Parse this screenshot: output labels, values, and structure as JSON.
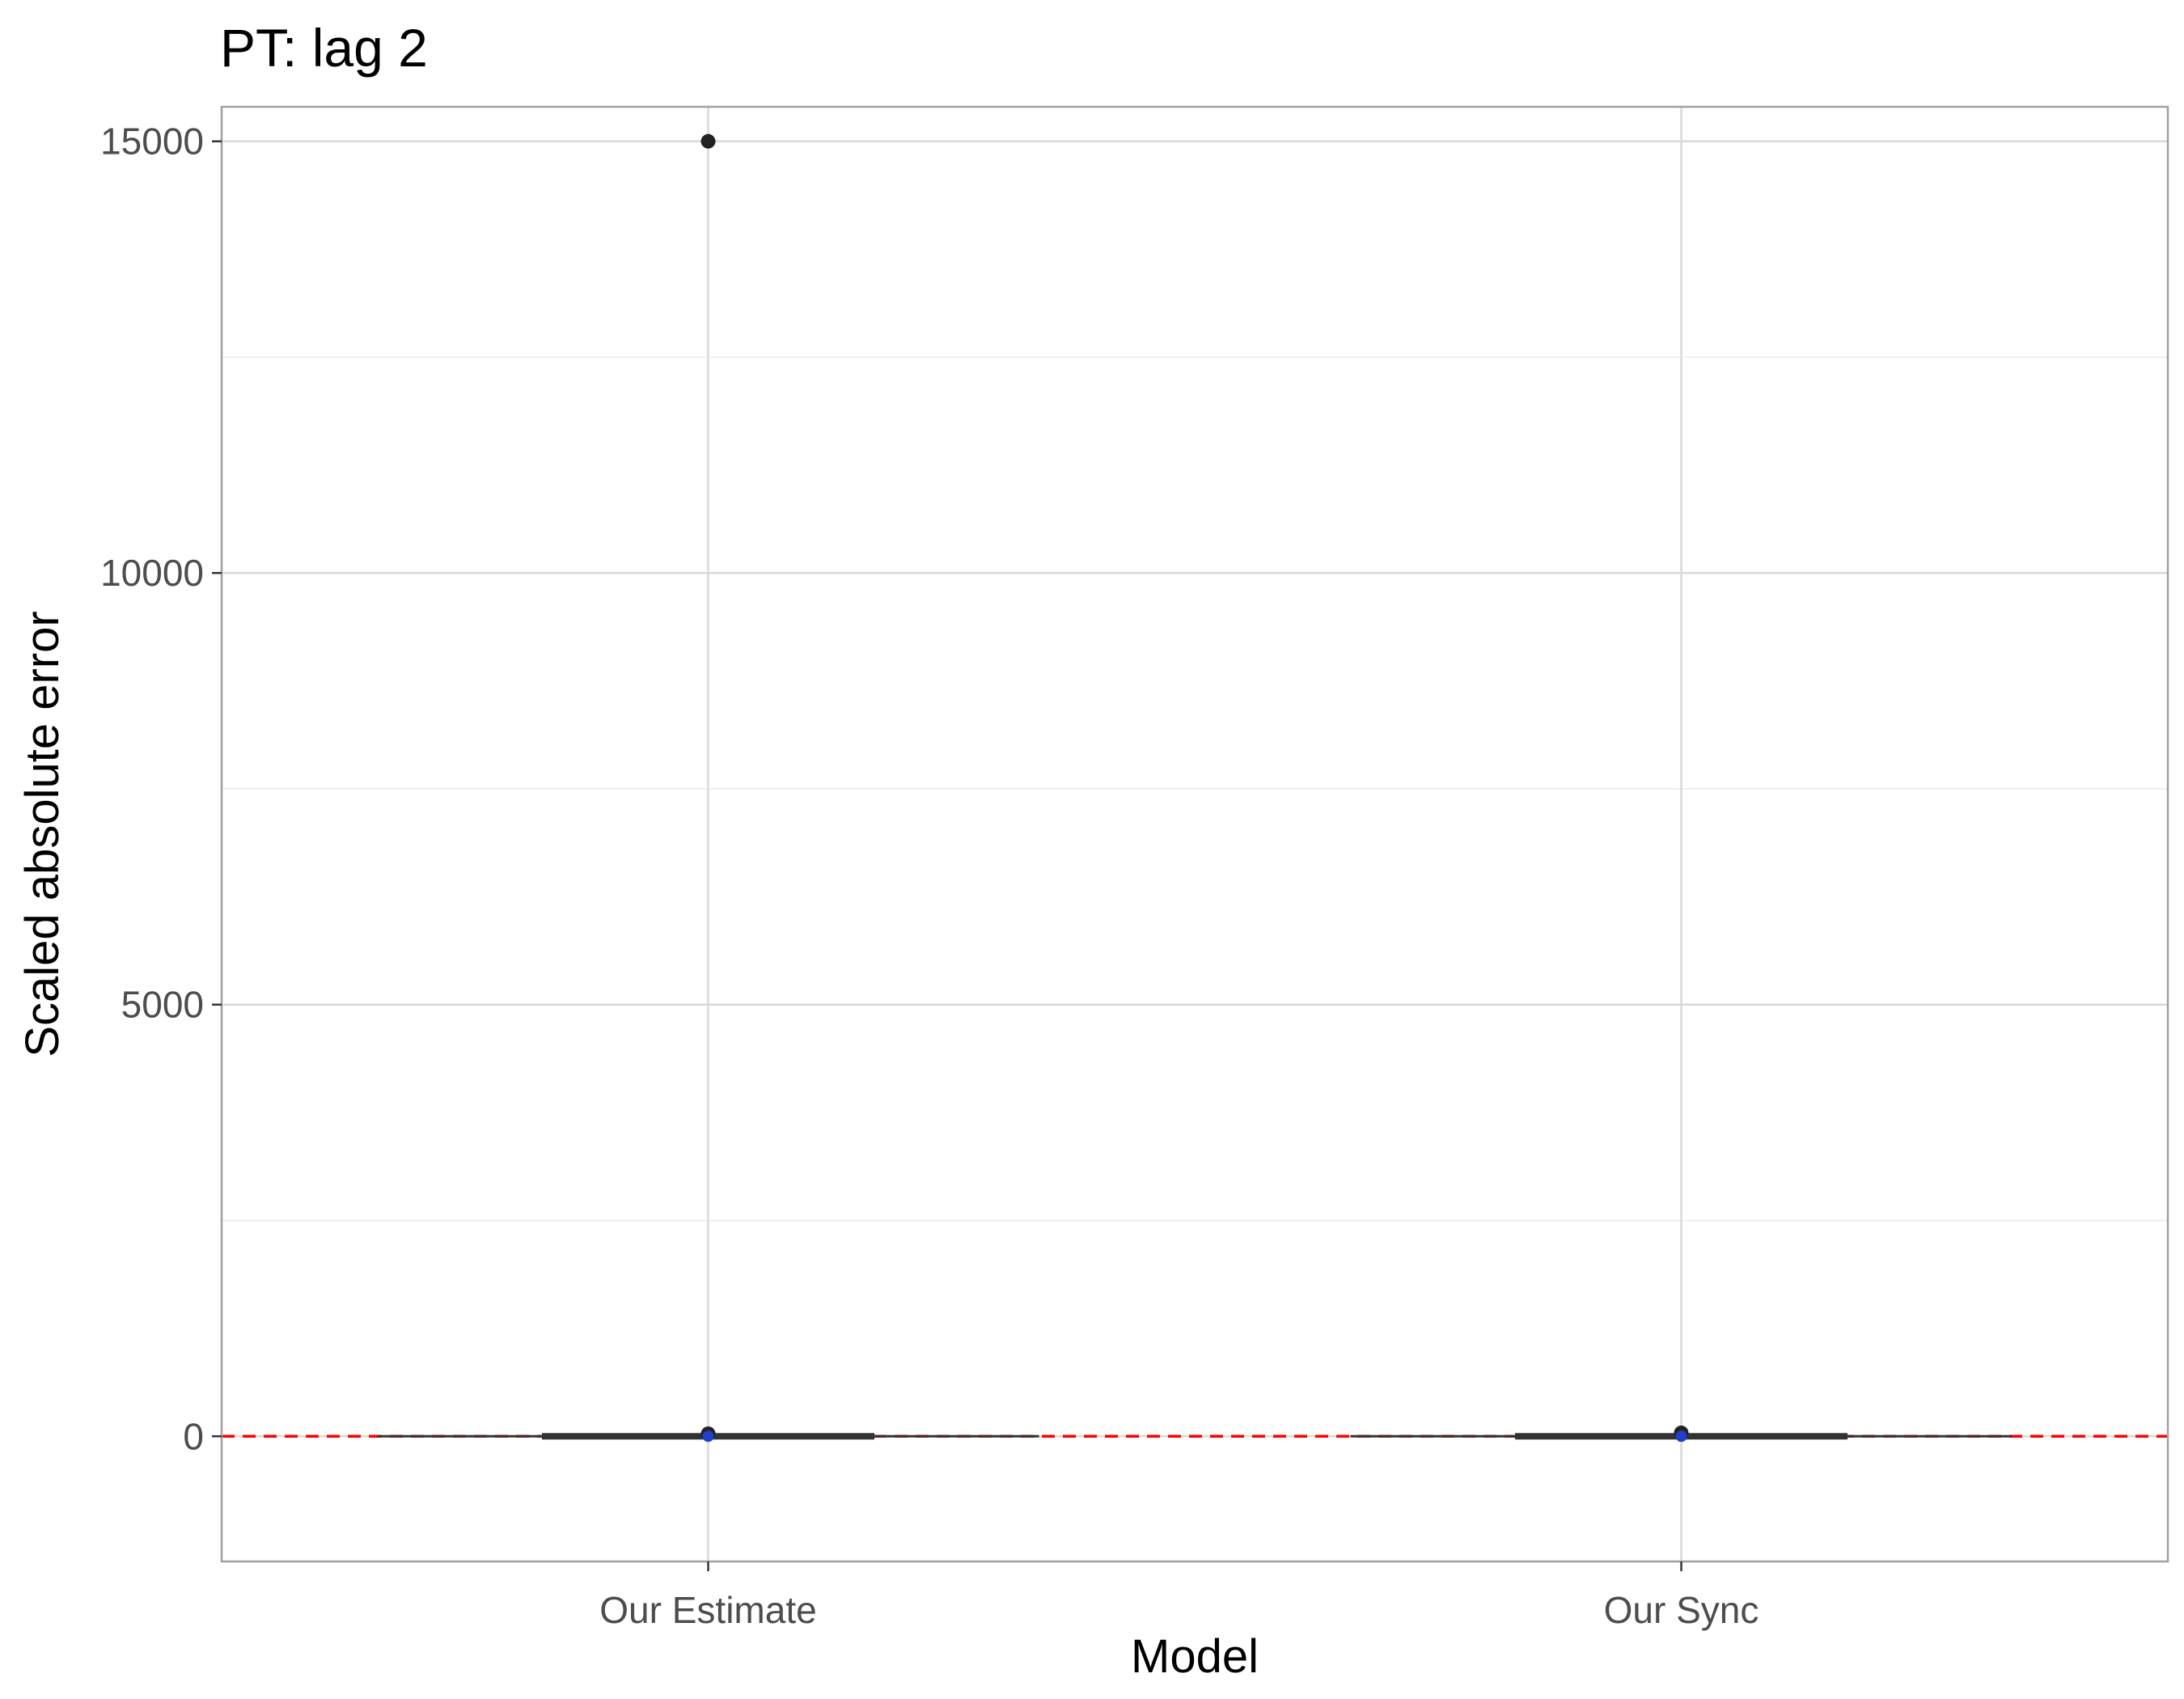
{
  "chart_data": {
    "type": "box",
    "title": "PT: lag 2",
    "xlabel": "Model",
    "ylabel": "Scaled absolute error",
    "categories": [
      "Our Estimate",
      "Our Sync"
    ],
    "ylim": [
      -1450,
      15400
    ],
    "yticks": [
      0,
      5000,
      10000,
      15000
    ],
    "grid": true,
    "series": [
      {
        "category": "Our Estimate",
        "whisker_low": 0,
        "q1": 0,
        "median": 0,
        "q3": 0,
        "whisker_high": 0,
        "mean": 0,
        "outliers": [
          15000,
          30
        ]
      },
      {
        "category": "Our Sync",
        "whisker_low": 0,
        "q1": 0,
        "median": 0,
        "q3": 0,
        "whisker_high": 0,
        "mean": 0,
        "outliers": [
          40
        ]
      }
    ],
    "reference_line": {
      "y": 0,
      "style": "dashed"
    },
    "colors": {
      "reference_line": "#ff0000",
      "mean_point": "#1f3fd1",
      "box": "#333333",
      "outlier": "#222222",
      "grid": "#d9d9d9",
      "panel_border": "#a0a0a0"
    }
  }
}
